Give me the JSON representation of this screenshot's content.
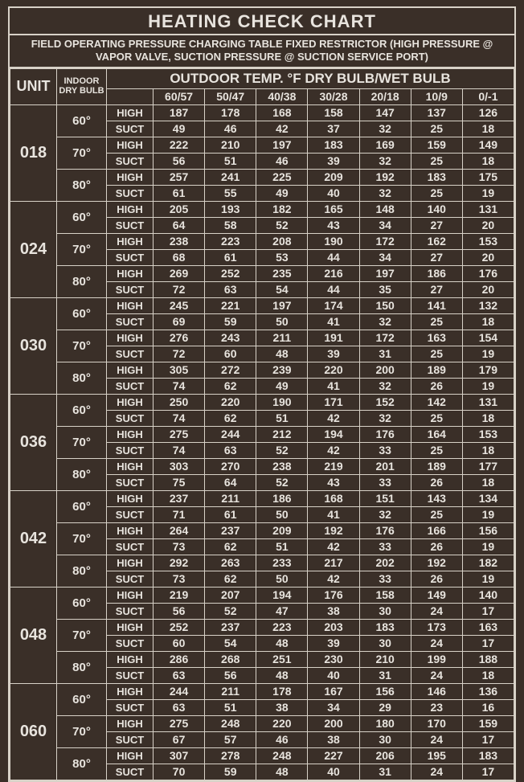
{
  "title": "HEATING CHECK CHART",
  "subtitle": "FIELD OPERATING PRESSURE CHARGING TABLE FIXED RESTRICTOR (HIGH PRESSURE @ VAPOR VALVE, SUCTION PRESSURE @ SUCTION SERVICE PORT)",
  "header_unit": "UNIT",
  "header_indoor": "INDOOR DRY BULB",
  "header_outdoor": "OUTDOOR TEMP. °F DRY BULB/WET BULB",
  "outdoor_temps": [
    "60/57",
    "50/47",
    "40/38",
    "30/28",
    "20/18",
    "10/9",
    "0/-1"
  ],
  "indoor_labels": [
    "60°",
    "70°",
    "80°"
  ],
  "type_labels": [
    "HIGH",
    "SUCT"
  ],
  "units": [
    {
      "name": "018",
      "groups": [
        {
          "high": [
            187,
            178,
            168,
            158,
            147,
            137,
            126
          ],
          "suct": [
            49,
            46,
            42,
            37,
            32,
            25,
            18
          ]
        },
        {
          "high": [
            222,
            210,
            197,
            183,
            169,
            159,
            149
          ],
          "suct": [
            56,
            51,
            46,
            39,
            32,
            25,
            18
          ]
        },
        {
          "high": [
            257,
            241,
            225,
            209,
            192,
            183,
            175
          ],
          "suct": [
            61,
            55,
            49,
            40,
            32,
            25,
            19
          ]
        }
      ]
    },
    {
      "name": "024",
      "groups": [
        {
          "high": [
            205,
            193,
            182,
            165,
            148,
            140,
            131
          ],
          "suct": [
            64,
            58,
            52,
            43,
            34,
            27,
            20
          ]
        },
        {
          "high": [
            238,
            223,
            208,
            190,
            172,
            162,
            153
          ],
          "suct": [
            68,
            61,
            53,
            44,
            34,
            27,
            20
          ]
        },
        {
          "high": [
            269,
            252,
            235,
            216,
            197,
            186,
            176
          ],
          "suct": [
            72,
            63,
            54,
            44,
            35,
            27,
            20
          ]
        }
      ]
    },
    {
      "name": "030",
      "groups": [
        {
          "high": [
            245,
            221,
            197,
            174,
            150,
            141,
            132
          ],
          "suct": [
            69,
            59,
            50,
            41,
            32,
            25,
            18
          ]
        },
        {
          "high": [
            276,
            243,
            211,
            191,
            172,
            163,
            154
          ],
          "suct": [
            72,
            60,
            48,
            39,
            31,
            25,
            19
          ]
        },
        {
          "high": [
            305,
            272,
            239,
            220,
            200,
            189,
            179
          ],
          "suct": [
            74,
            62,
            49,
            41,
            32,
            26,
            19
          ]
        }
      ]
    },
    {
      "name": "036",
      "groups": [
        {
          "high": [
            250,
            220,
            190,
            171,
            152,
            142,
            131
          ],
          "suct": [
            74,
            62,
            51,
            42,
            32,
            25,
            18
          ]
        },
        {
          "high": [
            275,
            244,
            212,
            194,
            176,
            164,
            153
          ],
          "suct": [
            74,
            63,
            52,
            42,
            33,
            25,
            18
          ]
        },
        {
          "high": [
            303,
            270,
            238,
            219,
            201,
            189,
            177
          ],
          "suct": [
            75,
            64,
            52,
            43,
            33,
            26,
            18
          ]
        }
      ]
    },
    {
      "name": "042",
      "groups": [
        {
          "high": [
            237,
            211,
            186,
            168,
            151,
            143,
            134
          ],
          "suct": [
            71,
            61,
            50,
            41,
            32,
            25,
            19
          ]
        },
        {
          "high": [
            264,
            237,
            209,
            192,
            176,
            166,
            156
          ],
          "suct": [
            73,
            62,
            51,
            42,
            33,
            26,
            19
          ]
        },
        {
          "high": [
            292,
            263,
            233,
            217,
            202,
            192,
            182
          ],
          "suct": [
            73,
            62,
            50,
            42,
            33,
            26,
            19
          ]
        }
      ]
    },
    {
      "name": "048",
      "groups": [
        {
          "high": [
            219,
            207,
            194,
            176,
            158,
            149,
            140
          ],
          "suct": [
            56,
            52,
            47,
            38,
            30,
            24,
            17
          ]
        },
        {
          "high": [
            252,
            237,
            223,
            203,
            183,
            173,
            163
          ],
          "suct": [
            60,
            54,
            48,
            39,
            30,
            24,
            17
          ]
        },
        {
          "high": [
            286,
            268,
            251,
            230,
            210,
            199,
            188
          ],
          "suct": [
            63,
            56,
            48,
            40,
            31,
            24,
            18
          ]
        }
      ]
    },
    {
      "name": "060",
      "groups": [
        {
          "high": [
            244,
            211,
            178,
            167,
            156,
            146,
            136
          ],
          "suct": [
            63,
            51,
            38,
            34,
            29,
            23,
            16
          ]
        },
        {
          "high": [
            275,
            248,
            220,
            200,
            180,
            170,
            159
          ],
          "suct": [
            67,
            57,
            46,
            38,
            30,
            24,
            17
          ]
        },
        {
          "high": [
            307,
            278,
            248,
            227,
            206,
            195,
            183
          ],
          "suct": [
            70,
            59,
            48,
            40,
            31,
            24,
            17
          ]
        }
      ]
    }
  ]
}
